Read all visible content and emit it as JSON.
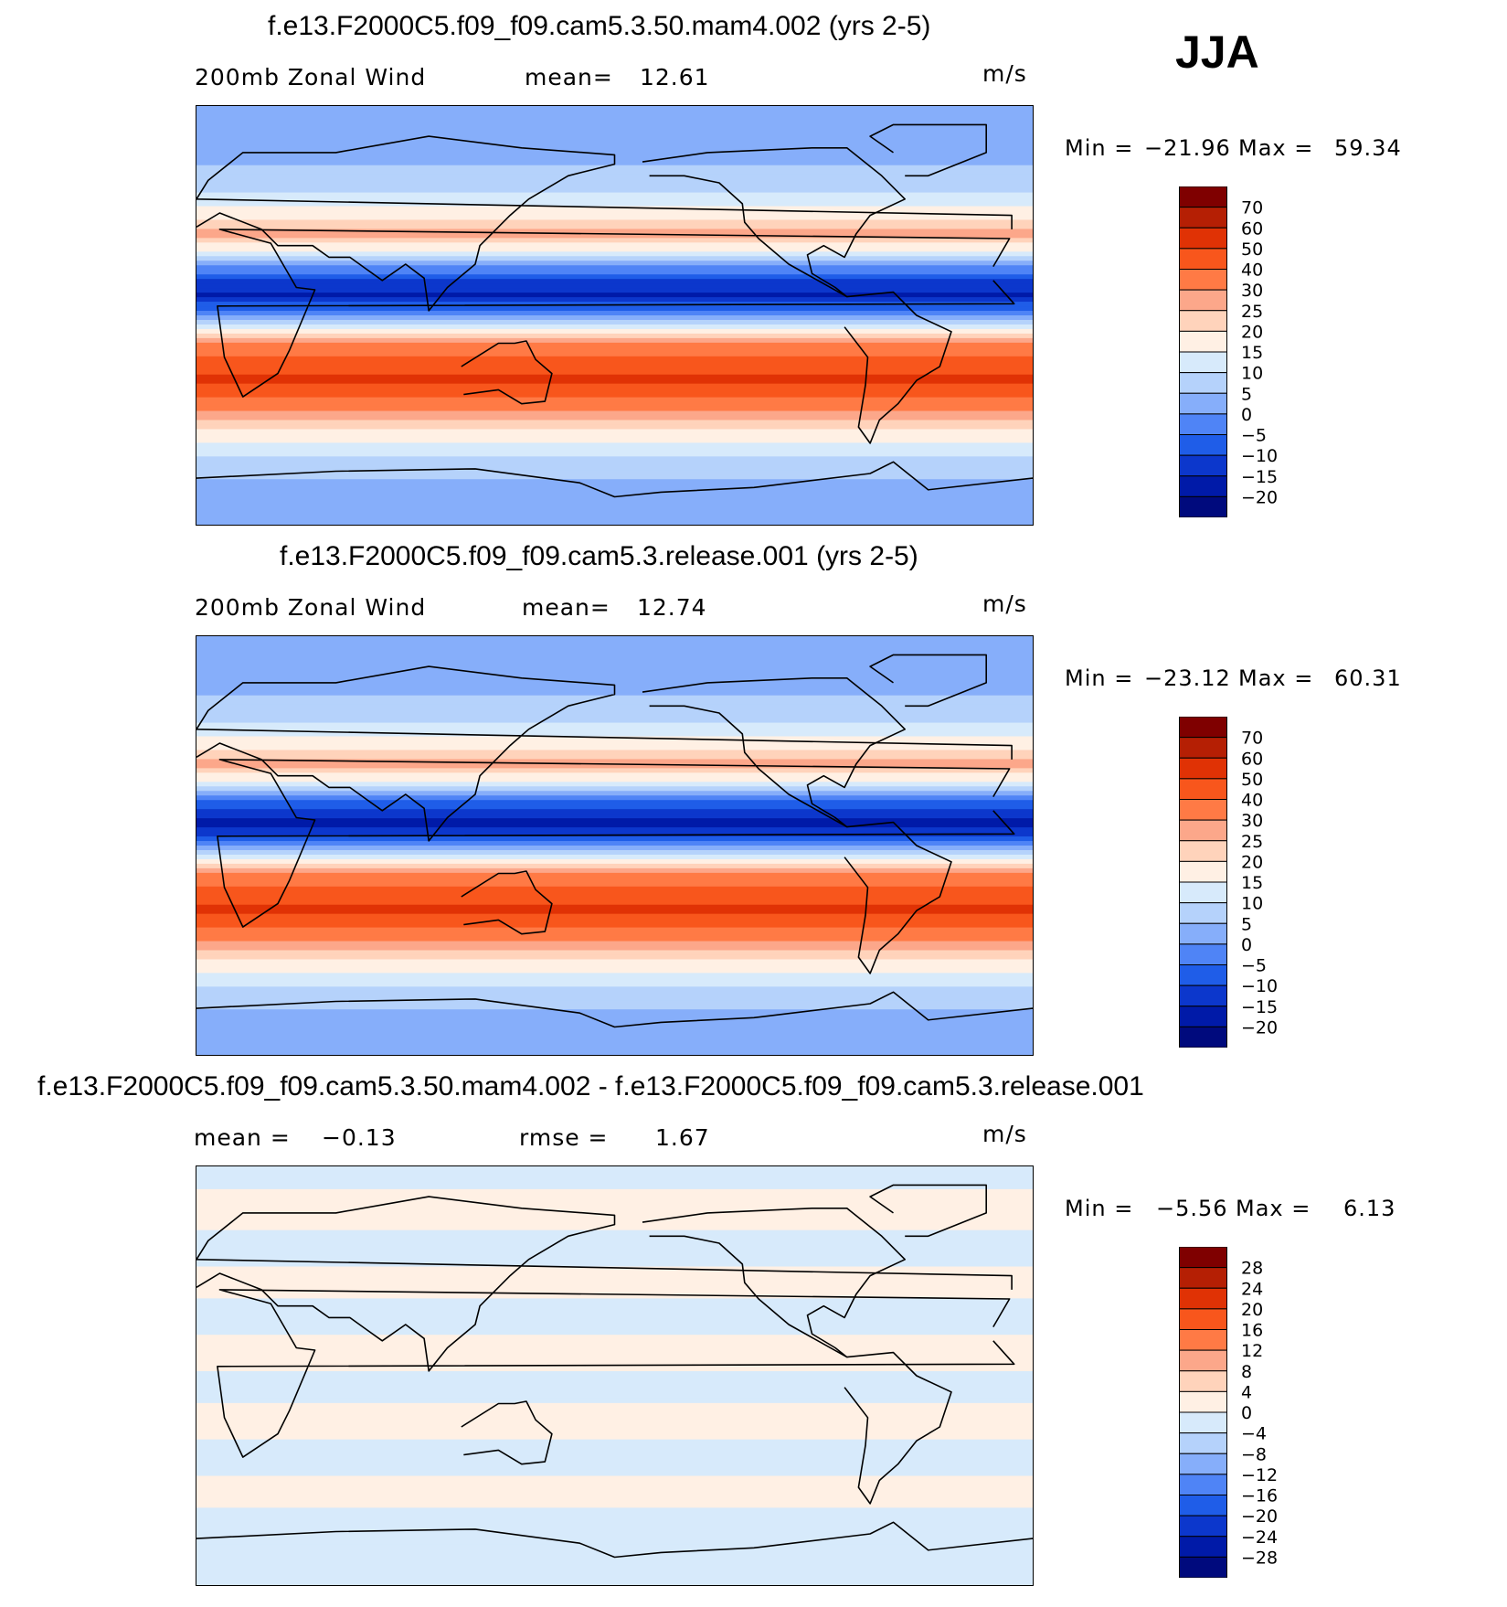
{
  "season": "JJA",
  "chart_data": [
    {
      "type": "heatmap",
      "title": "f.e13.F2000C5.f09_f09.cam5.3.50.mam4.002 (yrs 2-5)",
      "variable": "200mb Zonal Wind",
      "units": "m/s",
      "stat_left_label": "mean=",
      "stat_left_value": "12.61",
      "stat_right_label": "",
      "stat_right_value": "",
      "min_label": "Min =",
      "min_value": "−21.96",
      "max_label": "Max =",
      "max_value": "59.34",
      "levels": [
        "70",
        "60",
        "50",
        "40",
        "30",
        "25",
        "20",
        "15",
        "10",
        "5",
        "0",
        "−5",
        "−10",
        "−15",
        "−20"
      ],
      "colors": [
        "#7f0000",
        "#b51f04",
        "#e03205",
        "#f8561c",
        "#ff7a45",
        "#fca78a",
        "#ffd3bb",
        "#fff0e4",
        "#d7eafb",
        "#b5d2fb",
        "#86aefa",
        "#4f84f6",
        "#1f5de8",
        "#0c37cc",
        "#001aa8",
        "#000a7d"
      ],
      "lat_profile": [
        [
          90,
          4
        ],
        [
          80,
          3
        ],
        [
          70,
          4
        ],
        [
          60,
          6
        ],
        [
          50,
          12
        ],
        [
          42,
          20
        ],
        [
          35,
          27
        ],
        [
          28,
          15
        ],
        [
          22,
          2
        ],
        [
          15,
          -12
        ],
        [
          8,
          -16
        ],
        [
          3,
          -6
        ],
        [
          -3,
          8
        ],
        [
          -10,
          28
        ],
        [
          -20,
          45
        ],
        [
          -28,
          52
        ],
        [
          -35,
          42
        ],
        [
          -45,
          24
        ],
        [
          -55,
          15
        ],
        [
          -65,
          6
        ],
        [
          -75,
          4
        ],
        [
          -90,
          4
        ]
      ]
    },
    {
      "type": "heatmap",
      "title": "f.e13.F2000C5.f09_f09.cam5.3.release.001 (yrs 2-5)",
      "variable": "200mb Zonal Wind",
      "units": "m/s",
      "stat_left_label": "mean=",
      "stat_left_value": "12.74",
      "stat_right_label": "",
      "stat_right_value": "",
      "min_label": "Min =",
      "min_value": "−23.12",
      "max_label": "Max =",
      "max_value": "60.31",
      "levels": [
        "70",
        "60",
        "50",
        "40",
        "30",
        "25",
        "20",
        "15",
        "10",
        "5",
        "0",
        "−5",
        "−10",
        "−15",
        "−20"
      ],
      "colors": [
        "#7f0000",
        "#b51f04",
        "#e03205",
        "#f8561c",
        "#ff7a45",
        "#fca78a",
        "#ffd3bb",
        "#fff0e4",
        "#d7eafb",
        "#b5d2fb",
        "#86aefa",
        "#4f84f6",
        "#1f5de8",
        "#0c37cc",
        "#001aa8",
        "#000a7d"
      ],
      "lat_profile": [
        [
          90,
          4
        ],
        [
          80,
          3
        ],
        [
          70,
          4
        ],
        [
          60,
          6
        ],
        [
          50,
          12
        ],
        [
          42,
          20
        ],
        [
          35,
          27
        ],
        [
          28,
          15
        ],
        [
          22,
          2
        ],
        [
          15,
          -13
        ],
        [
          8,
          -17
        ],
        [
          3,
          -6
        ],
        [
          -3,
          8
        ],
        [
          -10,
          28
        ],
        [
          -20,
          45
        ],
        [
          -28,
          53
        ],
        [
          -35,
          42
        ],
        [
          -45,
          24
        ],
        [
          -55,
          15
        ],
        [
          -65,
          6
        ],
        [
          -75,
          4
        ],
        [
          -90,
          4
        ]
      ]
    },
    {
      "type": "heatmap",
      "title": "f.e13.F2000C5.f09_f09.cam5.3.50.mam4.002 - f.e13.F2000C5.f09_f09.cam5.3.release.001",
      "variable": "",
      "units": "m/s",
      "stat_left_label": "mean =",
      "stat_left_value": "−0.13",
      "stat_right_label": "rmse =",
      "stat_right_value": "1.67",
      "min_label": "Min =",
      "min_value": "−5.56",
      "max_label": "Max =",
      "max_value": "6.13",
      "levels": [
        "28",
        "24",
        "20",
        "16",
        "12",
        "8",
        "4",
        "0",
        "−4",
        "−8",
        "−12",
        "−16",
        "−20",
        "−24",
        "−28"
      ],
      "colors": [
        "#7f0000",
        "#b51f04",
        "#e03205",
        "#f8561c",
        "#ff7a45",
        "#fca78a",
        "#ffd3bb",
        "#fff0e4",
        "#d7eafb",
        "#b5d2fb",
        "#86aefa",
        "#4f84f6",
        "#1f5de8",
        "#0c37cc",
        "#001aa8",
        "#000a7d"
      ],
      "lat_profile": [
        [
          90,
          -1
        ],
        [
          70,
          1
        ],
        [
          55,
          -1
        ],
        [
          40,
          1
        ],
        [
          25,
          -1
        ],
        [
          10,
          1
        ],
        [
          -5,
          -1
        ],
        [
          -20,
          1
        ],
        [
          -35,
          -1
        ],
        [
          -50,
          1
        ],
        [
          -65,
          -1
        ],
        [
          -90,
          -1
        ]
      ]
    }
  ]
}
